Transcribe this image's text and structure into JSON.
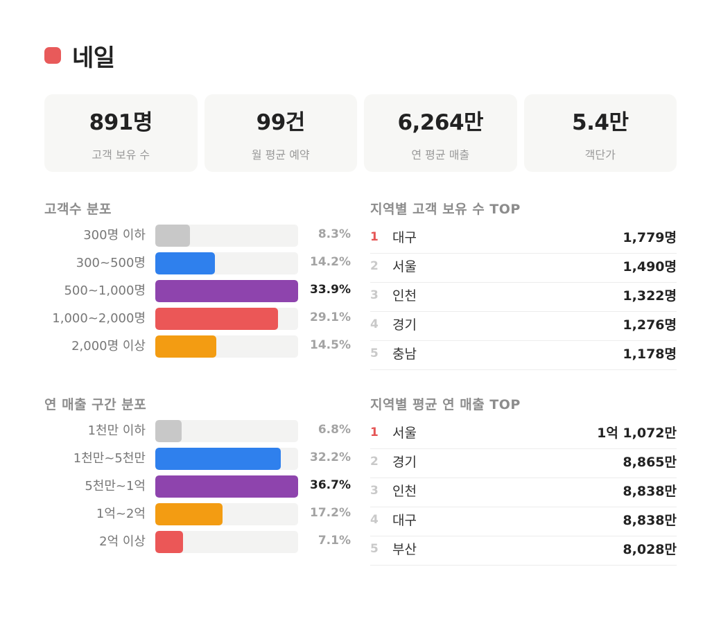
{
  "header": {
    "title": "네일",
    "accent_color": "#e85a5a"
  },
  "stats": [
    {
      "value": "891명",
      "label": "고객 보유 수"
    },
    {
      "value": "99건",
      "label": "월 평균 예약"
    },
    {
      "value": "6,264만",
      "label": "연 평균 매출"
    },
    {
      "value": "5.4만",
      "label": "객단가"
    }
  ],
  "customer_distribution": {
    "title": "고객수 분포",
    "rows": [
      {
        "label": "300명 이하",
        "pct_text": "8.3%"
      },
      {
        "label": "300~500명",
        "pct_text": "14.2%"
      },
      {
        "label": "500~1,000명",
        "pct_text": "33.9%"
      },
      {
        "label": "1,000~2,000명",
        "pct_text": "29.1%"
      },
      {
        "label": "2,000명 이상",
        "pct_text": "14.5%"
      }
    ]
  },
  "sales_distribution": {
    "title": "연 매출 구간 분포",
    "rows": [
      {
        "label": "1천만 이하",
        "pct_text": "6.8%"
      },
      {
        "label": "1천만~5천만",
        "pct_text": "32.2%"
      },
      {
        "label": "5천만~1억",
        "pct_text": "36.7%"
      },
      {
        "label": "1억~2억",
        "pct_text": "17.2%"
      },
      {
        "label": "2억 이상",
        "pct_text": "7.1%"
      }
    ]
  },
  "region_customers": {
    "title": "지역별 고객 보유 수 TOP",
    "rows": [
      {
        "rank": "1",
        "name": "대구",
        "value": "1,779명"
      },
      {
        "rank": "2",
        "name": "서울",
        "value": "1,490명"
      },
      {
        "rank": "3",
        "name": "인천",
        "value": "1,322명"
      },
      {
        "rank": "4",
        "name": "경기",
        "value": "1,276명"
      },
      {
        "rank": "5",
        "name": "충남",
        "value": "1,178명"
      }
    ]
  },
  "region_sales": {
    "title": "지역별 평균 연 매출 TOP",
    "rows": [
      {
        "rank": "1",
        "name": "서울",
        "value": "1억 1,072만"
      },
      {
        "rank": "2",
        "name": "경기",
        "value": "8,865만"
      },
      {
        "rank": "3",
        "name": "인천",
        "value": "8,838만"
      },
      {
        "rank": "4",
        "name": "대구",
        "value": "8,838만"
      },
      {
        "rank": "5",
        "name": "부산",
        "value": "8,028만"
      }
    ]
  },
  "chart_data": [
    {
      "type": "bar",
      "orientation": "horizontal",
      "title": "고객수 분포",
      "categories": [
        "300명 이하",
        "300~500명",
        "500~1,000명",
        "1,000~2,000명",
        "2,000명 이상"
      ],
      "values": [
        8.3,
        14.2,
        33.9,
        29.1,
        14.5
      ],
      "colors": [
        "#c8c8c8",
        "#2f80ed",
        "#8e44ad",
        "#eb5757",
        "#f39c12"
      ],
      "max_index": 2
    },
    {
      "type": "bar",
      "orientation": "horizontal",
      "title": "연 매출 구간 분포",
      "categories": [
        "1천만 이하",
        "1천만~5천만",
        "5천만~1억",
        "1억~2억",
        "2억 이상"
      ],
      "values": [
        6.8,
        32.2,
        36.7,
        17.2,
        7.1
      ],
      "colors": [
        "#c8c8c8",
        "#2f80ed",
        "#8e44ad",
        "#f39c12",
        "#eb5757"
      ],
      "max_index": 2
    }
  ]
}
